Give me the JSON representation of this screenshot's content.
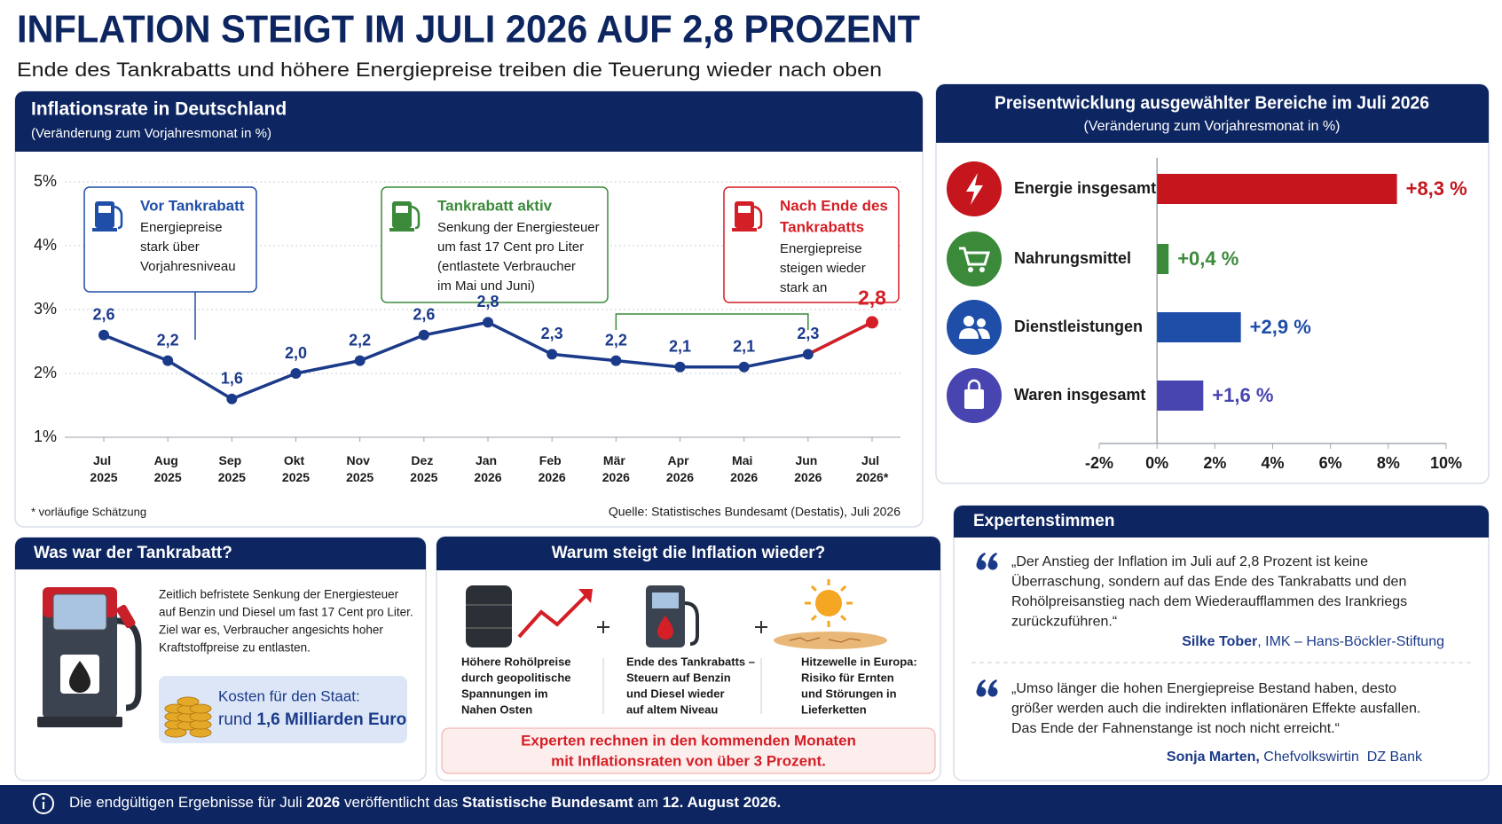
{
  "header": {
    "title": "INFLATION STEIGT IM JULI 2026 AUF 2,8 PROZENT",
    "subtitle": "Ende des Tankrabatts und höhere Energiepreise treiben die Teuerung wieder nach oben"
  },
  "chart_data": [
    {
      "type": "line",
      "title": "Inflationsrate in Deutschland",
      "subtitle": "(Veränderung zum Vorjahresmonat in %)",
      "categories": [
        "Jul 2025",
        "Aug 2025",
        "Sep 2025",
        "Okt 2025",
        "Nov 2025",
        "Dez 2025",
        "Jan 2026",
        "Feb 2026",
        "Mär 2026",
        "Apr 2026",
        "Mai 2026",
        "Jun 2026",
        "Jul 2026*"
      ],
      "values": [
        2.6,
        2.2,
        1.6,
        2.0,
        2.2,
        2.6,
        2.8,
        2.3,
        2.2,
        2.1,
        2.1,
        2.3,
        2.8
      ],
      "value_labels": [
        "2,6",
        "2,2",
        "1,6",
        "2,0",
        "2,2",
        "2,6",
        "2,8",
        "2,3",
        "2,2",
        "2,1",
        "2,1",
        "2,3",
        "2,8"
      ],
      "color": "#1b3a8a",
      "highlight_color": "#d41f26",
      "ylim": [
        1,
        5
      ],
      "yticks": [
        {
          "value": 1,
          "label": "1%"
        },
        {
          "value": 2,
          "label": "2%"
        },
        {
          "value": 3,
          "label": "3%"
        },
        {
          "value": 4,
          "label": "4%"
        },
        {
          "value": 5,
          "label": "5%"
        }
      ],
      "grid": true,
      "annotations": [
        {
          "title": [
            "Vor Tankrabatt"
          ],
          "lines": [
            "Energiepreise",
            "stark über",
            "Vorjahresniveau"
          ],
          "color": "#1f4ea8"
        },
        {
          "title": [
            "Tankrabatt aktiv"
          ],
          "lines": [
            "Senkung der Energiesteuer",
            "um fast 17 Cent pro Liter",
            "(entlastete Verbraucher",
            "im Mai und Juni)"
          ],
          "color": "#3a8a3a"
        },
        {
          "title": [
            "Nach Ende des",
            "Tankrabatts"
          ],
          "lines": [
            "Energiepreise",
            "steigen wieder",
            "stark an"
          ],
          "color": "#d41f26"
        }
      ],
      "footnote": "* vorläufige Schätzung",
      "source": "Quelle: Statistisches Bundesamt (Destatis), Juli 2026"
    },
    {
      "type": "hbar",
      "title": "Preisentwicklung ausgewählter Bereiche im Juli 2026",
      "subtitle": "(Veränderung zum Vorjahresmonat in %)",
      "categories": [
        "Energie insgesamt",
        "Nahrungsmittel",
        "Dienstleistungen",
        "Waren insgesamt"
      ],
      "values": [
        8.3,
        0.4,
        2.9,
        1.6
      ],
      "value_labels": [
        "+8,3 %",
        "+0,4 %",
        "+2,9 %",
        "+1,6 %"
      ],
      "colors": [
        "#c4161c",
        "#3b8a3a",
        "#1f4ea8",
        "#4845b0"
      ],
      "xlim": [
        -2,
        10
      ],
      "xticks": [
        {
          "value": -2,
          "label": "-2%"
        },
        {
          "value": 0,
          "label": "0%"
        },
        {
          "value": 2,
          "label": "2%"
        },
        {
          "value": 4,
          "label": "4%"
        },
        {
          "value": 6,
          "label": "6%"
        },
        {
          "value": 8,
          "label": "8%"
        },
        {
          "value": 10,
          "label": "10%"
        }
      ]
    }
  ],
  "tankrabatt": {
    "title": "Was war der Tankrabatt?",
    "lines": [
      "Zeitlich befristete Senkung der Energiesteuer",
      "auf Benzin und Diesel um fast 17 Cent pro Liter.",
      "Ziel war es, Verbraucher angesichts hoher",
      "Kraftstoffpreise zu entlasten."
    ],
    "cost_label": "Kosten für den Staat:",
    "cost_prefix": "rund ",
    "cost_value": "1,6 Milliarden Euro"
  },
  "why": {
    "title": "Warum steigt die Inflation wieder?",
    "items": [
      {
        "lines": [
          "Höhere Rohölpreise",
          "durch geopolitische",
          "Spannungen im",
          "Nahen Osten"
        ]
      },
      {
        "lines": [
          "Ende des Tankrabatts –",
          "Steuern auf Benzin",
          "und Diesel wieder",
          "auf altem Niveau"
        ]
      },
      {
        "lines": [
          "Hitzewelle in Europa:",
          "Risiko für Ernten",
          "und Störungen in",
          "Lieferketten"
        ]
      }
    ],
    "conclusion": [
      "Experten rechnen in den kommenden Monaten",
      "mit Inflationsraten von über 3 Prozent."
    ]
  },
  "experts": {
    "title": "Expertenstimmen",
    "quotes": [
      {
        "lines": [
          "„Der Anstieg der Inflation im Juli auf 2,8 Prozent ist keine",
          "Überraschung, sondern auf das Ende des Tankrabatts und den",
          "Rohölpreisanstieg nach dem Wiederaufflammen des Irankriegs",
          "zurückzuführen.“"
        ],
        "name": "Silke Tober",
        "role": ", IMK – Hans-Böckler-Stiftung"
      },
      {
        "lines": [
          "„Umso länger die hohen Energiepreise Bestand haben, desto",
          "größer werden auch die indirekten inflationären Effekte ausfallen.",
          "Das Ende der Fahnenstange ist noch nicht erreicht.“"
        ],
        "name": "Sonja Marten, ",
        "role": "Chefvolkswirtin  DZ Bank"
      }
    ]
  },
  "footer": {
    "parts": [
      {
        "text": "Die endgültigen Ergebnisse für Juli ",
        "bold": false
      },
      {
        "text": "2026",
        "bold": true
      },
      {
        "text": " veröffentlicht das ",
        "bold": false
      },
      {
        "text": "Statistische Bundesamt",
        "bold": true
      },
      {
        "text": " am ",
        "bold": false
      },
      {
        "text": "12. August 2026.",
        "bold": true
      }
    ]
  }
}
